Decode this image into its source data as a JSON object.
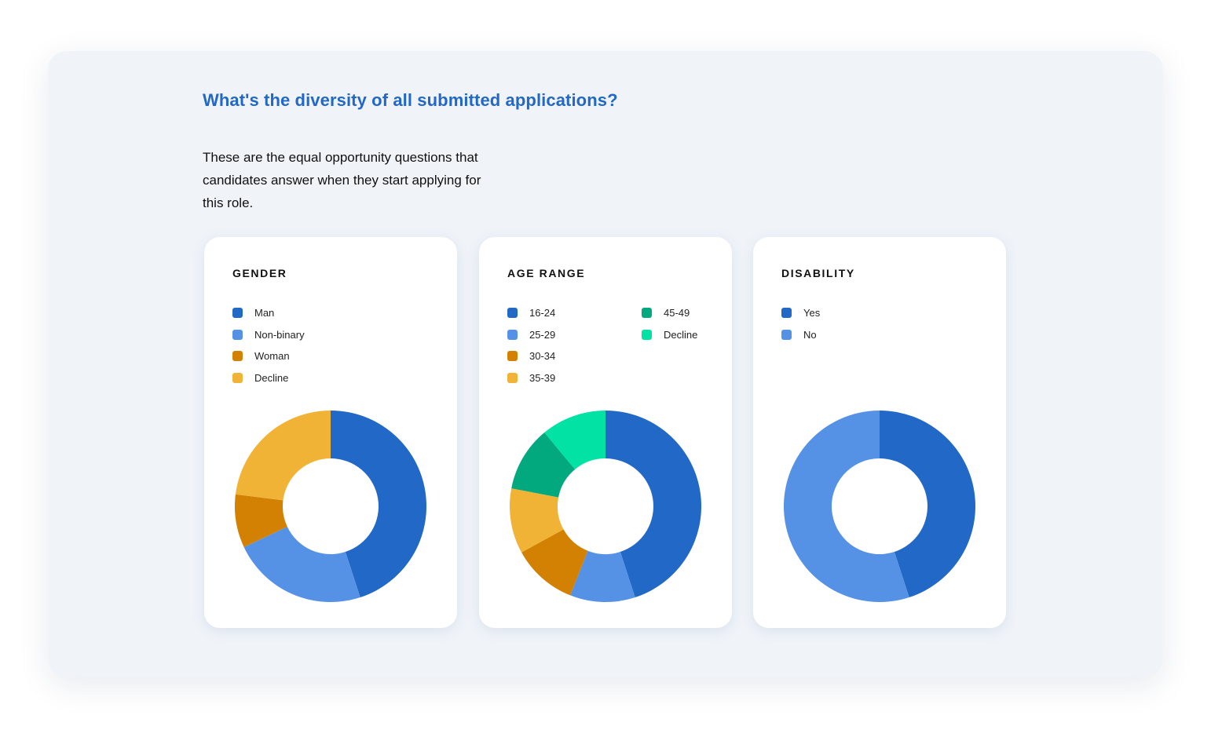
{
  "heading": "What's the diversity of all submitted applications?",
  "description": "These are the equal opportunity questions that candidates answer when they start applying for this role.",
  "chart_data": [
    {
      "type": "pie",
      "variant": "donut",
      "title": "GENDER",
      "categories": [
        "Man",
        "Non-binary",
        "Woman",
        "Decline"
      ],
      "values": [
        45,
        23,
        9,
        23
      ],
      "colors": [
        "#2268c6",
        "#5592e6",
        "#d38103",
        "#f0b336"
      ],
      "legend": "top"
    },
    {
      "type": "pie",
      "variant": "donut",
      "title": "AGE RANGE",
      "categories": [
        "16-24",
        "25-29",
        "30-34",
        "35-39",
        "45-49",
        "Decline"
      ],
      "values": [
        45,
        11,
        11,
        11,
        11,
        11
      ],
      "colors": [
        "#2268c6",
        "#5592e6",
        "#d38103",
        "#f0b336",
        "#02a97f",
        "#02e2a4"
      ],
      "legend": "top"
    },
    {
      "type": "pie",
      "variant": "donut",
      "title": "DISABILITY",
      "categories": [
        "Yes",
        "No"
      ],
      "values": [
        45,
        55
      ],
      "colors": [
        "#2268c6",
        "#5592e6"
      ],
      "legend": "top"
    }
  ]
}
